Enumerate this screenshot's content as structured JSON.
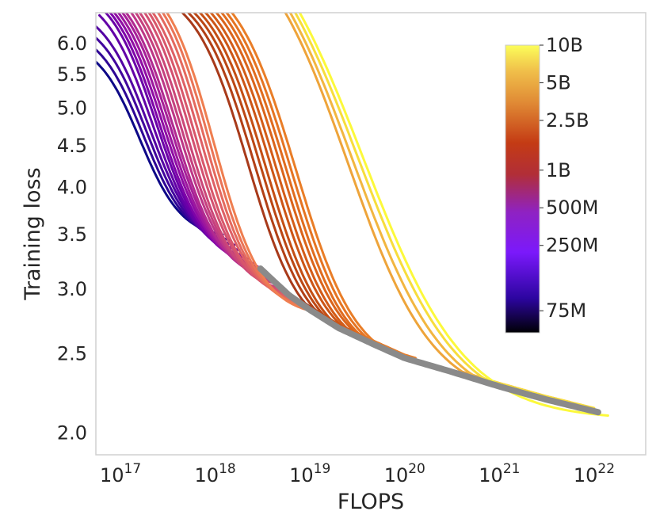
{
  "chart_data": {
    "type": "line",
    "title": "",
    "xlabel": "FLOPS",
    "ylabel": "Training loss",
    "x_scale": "log",
    "y_scale": "log",
    "xlim": [
      5.5e+16,
      3.5e+22
    ],
    "ylim": [
      1.88,
      6.55
    ],
    "grid": false,
    "x_ticks": [
      {
        "value": 1e+17,
        "base": "10",
        "exp": "17"
      },
      {
        "value": 1e+18,
        "base": "10",
        "exp": "18"
      },
      {
        "value": 1e+19,
        "base": "10",
        "exp": "19"
      },
      {
        "value": 1e+20,
        "base": "10",
        "exp": "20"
      },
      {
        "value": 1e+21,
        "base": "10",
        "exp": "21"
      },
      {
        "value": 1e+22,
        "base": "10",
        "exp": "22"
      }
    ],
    "y_ticks": [
      {
        "value": 2.0,
        "label": "2.0"
      },
      {
        "value": 2.5,
        "label": "2.5"
      },
      {
        "value": 3.0,
        "label": "3.0"
      },
      {
        "value": 3.5,
        "label": "3.5"
      },
      {
        "value": 4.0,
        "label": "4.0"
      },
      {
        "value": 4.5,
        "label": "4.5"
      },
      {
        "value": 5.0,
        "label": "5.0"
      },
      {
        "value": 5.5,
        "label": "5.5"
      },
      {
        "value": 6.0,
        "label": "6.0"
      }
    ],
    "colorbar": {
      "title": "",
      "scale": "log",
      "range": [
        50000000,
        10000000000
      ],
      "colormap": "plasma-like",
      "ticks": [
        {
          "value": 75000000,
          "label": "75M"
        },
        {
          "value": 250000000,
          "label": "250M"
        },
        {
          "value": 500000000,
          "label": "500M"
        },
        {
          "value": 1000000000,
          "label": "1B"
        },
        {
          "value": 2500000000,
          "label": "2.5B"
        },
        {
          "value": 5000000000,
          "label": "5B"
        },
        {
          "value": 10000000000,
          "label": "10B"
        }
      ]
    },
    "frontier": {
      "color": "#8a8a8a",
      "points": [
        [
          3e+18,
          3.18
        ],
        [
          6e+18,
          2.95
        ],
        [
          1e+19,
          2.83
        ],
        [
          2e+19,
          2.69
        ],
        [
          5e+19,
          2.56
        ],
        [
          1e+20,
          2.47
        ],
        [
          3e+20,
          2.38
        ],
        [
          1e+21,
          2.28
        ],
        [
          3e+21,
          2.2
        ],
        [
          1.1e+22,
          2.12
        ]
      ]
    },
    "series": [
      {
        "model_size": 75000000,
        "color": "#0d0887",
        "start_x": 5.5e+16,
        "start_y": 5.7,
        "end_x": 1.2e+18,
        "end_y": 3.5,
        "midpoint": 1.6e+17,
        "end_is_frontier": false
      },
      {
        "model_size": 90000000,
        "color": "#2e0595",
        "start_x": 5.5e+16,
        "start_y": 5.9,
        "end_x": 1.4e+18,
        "end_y": 3.45,
        "midpoint": 1.75e+17,
        "end_is_frontier": false
      },
      {
        "model_size": 110000000,
        "color": "#41049d",
        "start_x": 5.5e+16,
        "start_y": 6.1,
        "end_x": 1.6e+18,
        "end_y": 3.4,
        "midpoint": 1.9e+17,
        "end_is_frontier": false
      },
      {
        "model_size": 130000000,
        "color": "#5302a3",
        "start_x": 5.5e+16,
        "start_y": 6.3,
        "end_x": 1.8e+18,
        "end_y": 3.35,
        "midpoint": 2.05e+17,
        "end_is_frontier": false
      },
      {
        "model_size": 150000000,
        "color": "#6300a7",
        "start_x": 6e+16,
        "start_y": 6.5,
        "end_x": 2e+18,
        "end_y": 3.3,
        "midpoint": 2.2e+17,
        "end_is_frontier": false
      },
      {
        "model_size": 175000000,
        "color": "#6b00a8",
        "start_x": 7e+16,
        "start_y": 6.55,
        "end_x": 2.2e+18,
        "end_y": 3.27,
        "midpoint": 2.4e+17,
        "end_is_frontier": false
      },
      {
        "model_size": 200000000,
        "color": "#7e03a8",
        "start_x": 7.8e+16,
        "start_y": 6.55,
        "end_x": 2.5e+18,
        "end_y": 3.23,
        "midpoint": 2.6e+17,
        "end_is_frontier": false
      },
      {
        "model_size": 225000000,
        "color": "#8f0da4",
        "start_x": 8.6e+16,
        "start_y": 6.55,
        "end_x": 2.8e+18,
        "end_y": 3.2,
        "midpoint": 2.85e+17,
        "end_is_frontier": false
      },
      {
        "model_size": 250000000,
        "color": "#9c179e",
        "start_x": 9.5e+16,
        "start_y": 6.55,
        "end_x": 3.1e+18,
        "end_y": 3.17,
        "midpoint": 3.1e+17,
        "end_is_frontier": false
      },
      {
        "model_size": 280000000,
        "color": "#a62098",
        "start_x": 1.05e+17,
        "start_y": 6.55,
        "end_x": 3.4e+18,
        "end_y": 3.14,
        "midpoint": 3.4e+17,
        "end_is_frontier": false
      },
      {
        "model_size": 320000000,
        "color": "#b12a90",
        "start_x": 1.15e+17,
        "start_y": 6.55,
        "end_x": 3.8e+18,
        "end_y": 3.1,
        "midpoint": 3.7e+17,
        "end_is_frontier": false
      },
      {
        "model_size": 360000000,
        "color": "#bd3786",
        "start_x": 1.3e+17,
        "start_y": 6.55,
        "end_x": 4.3e+18,
        "end_y": 3.07,
        "midpoint": 4.1e+17,
        "end_is_frontier": false
      },
      {
        "model_size": 400000000,
        "color": "#c5407e",
        "start_x": 1.45e+17,
        "start_y": 6.55,
        "end_x": 4.8e+18,
        "end_y": 3.04,
        "midpoint": 4.5e+17,
        "end_is_frontier": false
      },
      {
        "model_size": 450000000,
        "color": "#cb4778",
        "start_x": 1.6e+17,
        "start_y": 6.55,
        "end_x": 5.3e+18,
        "end_y": 3.0,
        "midpoint": 5e+17,
        "end_is_frontier": false
      },
      {
        "model_size": 500000000,
        "color": "#d35171",
        "start_x": 1.8e+17,
        "start_y": 6.55,
        "end_x": 6e+18,
        "end_y": 2.97,
        "midpoint": 5.6e+17,
        "end_is_frontier": false
      },
      {
        "model_size": 560000000,
        "color": "#d8576b",
        "start_x": 2e+17,
        "start_y": 6.55,
        "end_x": 6.6e+18,
        "end_y": 2.94,
        "midpoint": 6.2e+17,
        "end_is_frontier": false
      },
      {
        "model_size": 630000000,
        "color": "#de5f65",
        "start_x": 2.2e+17,
        "start_y": 6.55,
        "end_x": 7.4e+18,
        "end_y": 2.91,
        "midpoint": 7e+17,
        "end_is_frontier": false
      },
      {
        "model_size": 700000000,
        "color": "#e4695e",
        "start_x": 2.5e+17,
        "start_y": 6.55,
        "end_x": 8.3e+18,
        "end_y": 2.88,
        "midpoint": 7.8e+17,
        "end_is_frontier": false
      },
      {
        "model_size": 800000000,
        "color": "#ea7457",
        "start_x": 2.8e+17,
        "start_y": 6.55,
        "end_x": 9.3e+18,
        "end_y": 2.85,
        "midpoint": 8.7e+17,
        "end_is_frontier": false
      },
      {
        "model_size": 900000000,
        "color": "#ef7e50",
        "start_x": 3.1e+17,
        "start_y": 6.55,
        "end_x": 1.05e+19,
        "end_y": 2.82,
        "midpoint": 9.7e+17,
        "end_is_frontier": false
      },
      {
        "model_size": 1000000000,
        "color": "#a83a1a",
        "start_x": 4.5e+17,
        "start_y": 6.55,
        "end_x": 2.2e+19,
        "end_y": 2.67,
        "midpoint": 2.2e+18,
        "end_is_frontier": true
      },
      {
        "model_size": 1100000000,
        "color": "#b24016",
        "start_x": 5.2e+17,
        "start_y": 6.55,
        "end_x": 2.7e+19,
        "end_y": 2.64,
        "midpoint": 2.6e+18,
        "end_is_frontier": true
      },
      {
        "model_size": 1200000000,
        "color": "#bb4714",
        "start_x": 6e+17,
        "start_y": 6.55,
        "end_x": 3.3e+19,
        "end_y": 2.61,
        "midpoint": 3e+18,
        "end_is_frontier": true
      },
      {
        "model_size": 1350000000,
        "color": "#c44e14",
        "start_x": 6.9e+17,
        "start_y": 6.55,
        "end_x": 4e+19,
        "end_y": 2.58,
        "midpoint": 3.4e+18,
        "end_is_frontier": true
      },
      {
        "model_size": 1500000000,
        "color": "#cc5516",
        "start_x": 7.9e+17,
        "start_y": 6.55,
        "end_x": 4.9e+19,
        "end_y": 2.56,
        "midpoint": 3.9e+18,
        "end_is_frontier": true
      },
      {
        "model_size": 1700000000,
        "color": "#d35c18",
        "start_x": 9e+17,
        "start_y": 6.55,
        "end_x": 6e+19,
        "end_y": 2.53,
        "midpoint": 4.4e+18,
        "end_is_frontier": true
      },
      {
        "model_size": 1900000000,
        "color": "#da641b",
        "start_x": 1.03e+18,
        "start_y": 6.55,
        "end_x": 7.3e+19,
        "end_y": 2.51,
        "midpoint": 5e+18,
        "end_is_frontier": true
      },
      {
        "model_size": 2100000000,
        "color": "#e06c1e",
        "start_x": 1.17e+18,
        "start_y": 6.55,
        "end_x": 8.9e+19,
        "end_y": 2.48,
        "midpoint": 5.6e+18,
        "end_is_frontier": true
      },
      {
        "model_size": 2300000000,
        "color": "#e57422",
        "start_x": 1.32e+18,
        "start_y": 6.55,
        "end_x": 1.08e+20,
        "end_y": 2.46,
        "midpoint": 6.3e+18,
        "end_is_frontier": true
      },
      {
        "model_size": 2500000000,
        "color": "#e97d27",
        "start_x": 1.5e+18,
        "start_y": 6.55,
        "end_x": 1.3e+20,
        "end_y": 2.44,
        "midpoint": 7.1e+18,
        "end_is_frontier": true
      },
      {
        "model_size": 4000000000,
        "color": "#eea43a",
        "start_x": 5.5e+18,
        "start_y": 6.55,
        "end_x": 2.8e+21,
        "end_y": 2.21,
        "midpoint": 2.5e+19,
        "end_is_frontier": true
      },
      {
        "model_size": 5000000000,
        "color": "#f2b640",
        "start_x": 6.2e+18,
        "start_y": 6.55,
        "end_x": 5.5e+21,
        "end_y": 2.16,
        "midpoint": 2.8e+19,
        "end_is_frontier": true
      },
      {
        "model_size": 8000000000,
        "color": "#f7dd3c",
        "start_x": 7e+18,
        "start_y": 6.55,
        "end_x": 1e+22,
        "end_y": 2.12,
        "midpoint": 3.2e+19,
        "end_is_frontier": true
      },
      {
        "model_size": 10000000000,
        "color": "#fcf93b",
        "start_x": 7.8e+18,
        "start_y": 6.55,
        "end_x": 1.4e+22,
        "end_y": 2.1,
        "midpoint": 3.6e+19,
        "end_is_frontier": false
      }
    ]
  }
}
